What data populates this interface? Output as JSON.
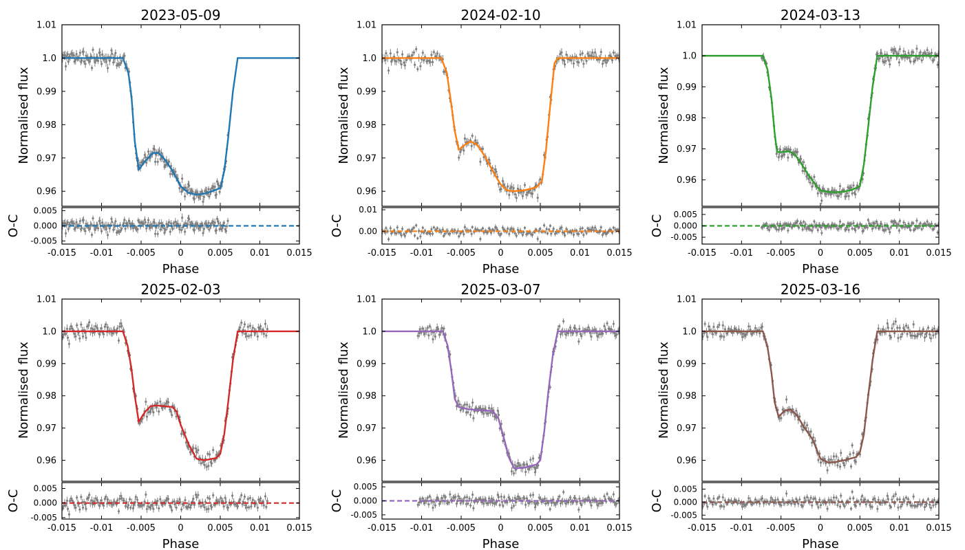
{
  "chart_data": [
    {
      "type": "scatter",
      "title": "2023-05-09",
      "xlabel": "Phase",
      "ylabel": "Normalised flux",
      "resid_label": "O-C",
      "color": "#1f77b4",
      "xlim": [
        -0.015,
        0.015
      ],
      "ylim": [
        0.9555,
        1.01
      ],
      "resid_ylim": [
        -0.006,
        0.006
      ],
      "x_ticks": [
        "-0.015",
        "-0.01",
        "-0.005",
        "0",
        "0.005",
        "0.01",
        "0.015"
      ],
      "y_ticks": [
        "0.96",
        "0.97",
        "0.98",
        "0.99",
        "1.0",
        "1.01"
      ],
      "resid_ticks": [
        "-0.005",
        "0.000",
        "0.005"
      ],
      "data_range": [
        -0.015,
        0.006
      ],
      "model": [
        [
          -0.015,
          1.0
        ],
        [
          -0.0073,
          1.0
        ],
        [
          -0.0066,
          0.9955
        ],
        [
          -0.0062,
          0.988
        ],
        [
          -0.0058,
          0.975
        ],
        [
          -0.0053,
          0.9665
        ],
        [
          -0.0045,
          0.969
        ],
        [
          -0.0035,
          0.9715
        ],
        [
          -0.0028,
          0.9715
        ],
        [
          -0.002,
          0.9695
        ],
        [
          -0.001,
          0.966
        ],
        [
          0.0,
          0.9615
        ],
        [
          0.001,
          0.9595
        ],
        [
          0.002,
          0.959
        ],
        [
          0.003,
          0.9593
        ],
        [
          0.004,
          0.96
        ],
        [
          0.005,
          0.961
        ],
        [
          0.0055,
          0.966
        ],
        [
          0.006,
          0.976
        ],
        [
          0.0066,
          0.99
        ],
        [
          0.0072,
          1.0
        ],
        [
          0.015,
          1.0
        ]
      ]
    },
    {
      "type": "scatter",
      "title": "2024-02-10",
      "xlabel": "Phase",
      "ylabel": "Normalised flux",
      "resid_label": "O-C",
      "color": "#ff7f0e",
      "xlim": [
        -0.015,
        0.015
      ],
      "ylim": [
        0.9555,
        1.01
      ],
      "resid_ylim": [
        -0.006,
        0.011
      ],
      "x_ticks": [
        "-0.015",
        "-0.01",
        "-0.005",
        "0",
        "0.005",
        "0.01",
        "0.015"
      ],
      "y_ticks": [
        "0.96",
        "0.97",
        "0.98",
        "0.99",
        "1.0",
        "1.01"
      ],
      "resid_ticks": [
        "0.00",
        "0.01"
      ],
      "data_range": [
        -0.015,
        0.015
      ],
      "model": [
        [
          -0.015,
          1.0
        ],
        [
          -0.0075,
          1.0
        ],
        [
          -0.0068,
          0.9955
        ],
        [
          -0.0063,
          0.987
        ],
        [
          -0.0058,
          0.978
        ],
        [
          -0.0053,
          0.9725
        ],
        [
          -0.0045,
          0.974
        ],
        [
          -0.0038,
          0.975
        ],
        [
          -0.003,
          0.974
        ],
        [
          -0.002,
          0.9705
        ],
        [
          -0.001,
          0.966
        ],
        [
          0.0,
          0.962
        ],
        [
          0.0008,
          0.9603
        ],
        [
          0.0015,
          0.96
        ],
        [
          0.003,
          0.9603
        ],
        [
          0.0045,
          0.9612
        ],
        [
          0.0052,
          0.963
        ],
        [
          0.0057,
          0.972
        ],
        [
          0.0063,
          0.987
        ],
        [
          0.0068,
          0.9985
        ],
        [
          0.0072,
          1.0
        ],
        [
          0.015,
          1.0
        ]
      ]
    },
    {
      "type": "scatter",
      "title": "2024-03-13",
      "xlabel": "Phase",
      "ylabel": "Normalised flux",
      "resid_label": "O-C",
      "color": "#2ca02c",
      "xlim": [
        -0.015,
        0.015
      ],
      "ylim": [
        0.9515,
        1.01
      ],
      "resid_ylim": [
        -0.008,
        0.008
      ],
      "x_ticks": [
        "-0.015",
        "-0.01",
        "-0.005",
        "0",
        "0.005",
        "0.01",
        "0.015"
      ],
      "y_ticks": [
        "0.96",
        "0.97",
        "0.98",
        "0.99",
        "1.0",
        "1.01"
      ],
      "resid_ticks": [
        "-0.005",
        "0.000",
        "0.005"
      ],
      "data_range": [
        -0.0075,
        0.015
      ],
      "model": [
        [
          -0.015,
          1.0
        ],
        [
          -0.0073,
          1.0
        ],
        [
          -0.0067,
          0.9955
        ],
        [
          -0.0062,
          0.986
        ],
        [
          -0.0058,
          0.975
        ],
        [
          -0.0055,
          0.969
        ],
        [
          -0.0045,
          0.969
        ],
        [
          -0.004,
          0.9693
        ],
        [
          -0.0032,
          0.968
        ],
        [
          -0.0025,
          0.9655
        ],
        [
          -0.0015,
          0.9615
        ],
        [
          -0.0005,
          0.958
        ],
        [
          0.0,
          0.9565
        ],
        [
          0.0015,
          0.956
        ],
        [
          0.003,
          0.9562
        ],
        [
          0.004,
          0.9568
        ],
        [
          0.005,
          0.958
        ],
        [
          0.0055,
          0.965
        ],
        [
          0.006,
          0.976
        ],
        [
          0.0066,
          0.99
        ],
        [
          0.0072,
          1.0
        ],
        [
          0.015,
          1.0
        ]
      ]
    },
    {
      "type": "scatter",
      "title": "2025-02-03",
      "xlabel": "Phase",
      "ylabel": "Normalised flux",
      "resid_label": "O-C",
      "color": "#d62728",
      "xlim": [
        -0.015,
        0.015
      ],
      "ylim": [
        0.9535,
        1.01
      ],
      "resid_ylim": [
        -0.0055,
        0.007
      ],
      "x_ticks": [
        "-0.015",
        "-0.01",
        "-0.005",
        "0",
        "0.005",
        "0.01",
        "0.015"
      ],
      "y_ticks": [
        "0.96",
        "0.97",
        "0.98",
        "0.99",
        "1.0",
        "1.01"
      ],
      "resid_ticks": [
        "-0.005",
        "0.000",
        "0.005"
      ],
      "data_range": [
        -0.015,
        0.011
      ],
      "model": [
        [
          -0.015,
          1.0
        ],
        [
          -0.0073,
          1.0
        ],
        [
          -0.0067,
          0.9955
        ],
        [
          -0.0062,
          0.988
        ],
        [
          -0.0058,
          0.98
        ],
        [
          -0.0053,
          0.972
        ],
        [
          -0.0045,
          0.975
        ],
        [
          -0.0038,
          0.9768
        ],
        [
          -0.003,
          0.977
        ],
        [
          -0.001,
          0.9765
        ],
        [
          -0.0005,
          0.975
        ],
        [
          0.0,
          0.971
        ],
        [
          0.001,
          0.965
        ],
        [
          0.002,
          0.9605
        ],
        [
          0.003,
          0.96
        ],
        [
          0.0045,
          0.9607
        ],
        [
          0.005,
          0.962
        ],
        [
          0.0055,
          0.968
        ],
        [
          0.006,
          0.978
        ],
        [
          0.0066,
          0.991
        ],
        [
          0.0072,
          1.0
        ],
        [
          0.015,
          1.0
        ]
      ]
    },
    {
      "type": "scatter",
      "title": "2025-03-07",
      "xlabel": "Phase",
      "ylabel": "Normalised flux",
      "resid_label": "O-C",
      "color": "#9467bd",
      "xlim": [
        -0.015,
        0.015
      ],
      "ylim": [
        0.9535,
        1.01
      ],
      "resid_ylim": [
        -0.0065,
        0.0065
      ],
      "x_ticks": [
        "-0.015",
        "-0.01",
        "-0.005",
        "0",
        "0.005",
        "0.01",
        "0.015"
      ],
      "y_ticks": [
        "0.96",
        "0.97",
        "0.98",
        "0.99",
        "1.0",
        "1.01"
      ],
      "resid_ticks": [
        "-0.005",
        "0.000",
        "0.005"
      ],
      "data_range": [
        -0.0105,
        0.015
      ],
      "model": [
        [
          -0.015,
          1.0
        ],
        [
          -0.0073,
          1.0
        ],
        [
          -0.0067,
          0.9955
        ],
        [
          -0.0062,
          0.987
        ],
        [
          -0.0058,
          0.979
        ],
        [
          -0.0053,
          0.9765
        ],
        [
          -0.004,
          0.9758
        ],
        [
          -0.0025,
          0.9755
        ],
        [
          -0.001,
          0.9753
        ],
        [
          -0.0003,
          0.973
        ],
        [
          0.0005,
          0.966
        ],
        [
          0.001,
          0.961
        ],
        [
          0.0017,
          0.9575
        ],
        [
          0.003,
          0.9577
        ],
        [
          0.0045,
          0.9587
        ],
        [
          0.005,
          0.96
        ],
        [
          0.0055,
          0.969
        ],
        [
          0.006,
          0.981
        ],
        [
          0.0066,
          0.993
        ],
        [
          0.0072,
          1.0
        ],
        [
          0.015,
          1.0
        ]
      ]
    },
    {
      "type": "scatter",
      "title": "2025-03-16",
      "xlabel": "Phase",
      "ylabel": "Normalised flux",
      "resid_label": "O-C",
      "color": "#8c564b",
      "xlim": [
        -0.015,
        0.015
      ],
      "ylim": [
        0.9535,
        1.01
      ],
      "resid_ylim": [
        -0.0065,
        0.0075
      ],
      "x_ticks": [
        "-0.015",
        "-0.01",
        "-0.005",
        "0",
        "0.005",
        "0.01",
        "0.015"
      ],
      "y_ticks": [
        "0.96",
        "0.97",
        "0.98",
        "0.99",
        "1.0",
        "1.01"
      ],
      "resid_ticks": [
        "-0.005",
        "0.000",
        "0.005"
      ],
      "data_range": [
        -0.015,
        0.015
      ],
      "model": [
        [
          -0.015,
          1.0
        ],
        [
          -0.0073,
          1.0
        ],
        [
          -0.0067,
          0.995
        ],
        [
          -0.0062,
          0.987
        ],
        [
          -0.0058,
          0.978
        ],
        [
          -0.0053,
          0.9735
        ],
        [
          -0.0045,
          0.9755
        ],
        [
          -0.0038,
          0.9757
        ],
        [
          -0.003,
          0.974
        ],
        [
          -0.002,
          0.97
        ],
        [
          -0.001,
          0.9665
        ],
        [
          0.0,
          0.9605
        ],
        [
          0.001,
          0.9593
        ],
        [
          0.002,
          0.9595
        ],
        [
          0.003,
          0.96
        ],
        [
          0.0045,
          0.961
        ],
        [
          0.005,
          0.9625
        ],
        [
          0.0055,
          0.968
        ],
        [
          0.006,
          0.979
        ],
        [
          0.0066,
          0.991
        ],
        [
          0.0072,
          1.0
        ],
        [
          0.015,
          1.0
        ]
      ]
    }
  ]
}
